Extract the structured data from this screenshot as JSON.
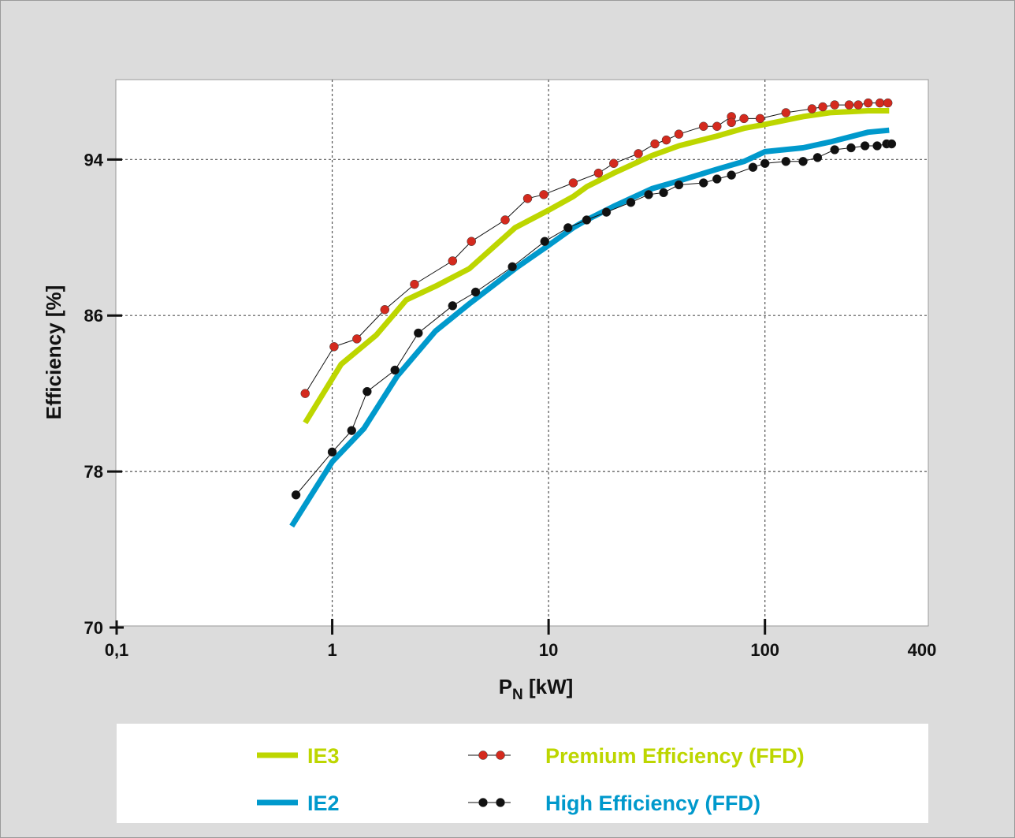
{
  "chart_data": {
    "type": "line",
    "x_scale": "log",
    "xlim": [
      0.1,
      400
    ],
    "ylim": [
      70,
      98.5
    ],
    "x_ticks": [
      {
        "value": 0.1,
        "label": "0,1"
      },
      {
        "value": 1,
        "label": "1"
      },
      {
        "value": 10,
        "label": "10"
      },
      {
        "value": 100,
        "label": "100"
      },
      {
        "value": 400,
        "label": "400"
      }
    ],
    "y_ticks": [
      {
        "value": 70,
        "label": "70"
      },
      {
        "value": 78,
        "label": "78"
      },
      {
        "value": 86,
        "label": "86"
      },
      {
        "value": 94,
        "label": "94"
      }
    ],
    "ylabel": "Efficiency [%]",
    "xlabel_main": "P",
    "xlabel_sub": "N",
    "xlabel_rest": " [kW]",
    "grid": true,
    "legend_position": "bottom",
    "series": [
      {
        "name": "IE3",
        "style": "line",
        "color": "#bdd600",
        "points": [
          [
            0.75,
            80.5
          ],
          [
            1.1,
            83.5
          ],
          [
            1.6,
            85
          ],
          [
            2.2,
            86.8
          ],
          [
            3.0,
            87.5
          ],
          [
            4.3,
            88.4
          ],
          [
            7.0,
            90.5
          ],
          [
            10,
            91.4
          ],
          [
            13,
            92.1
          ],
          [
            15,
            92.6
          ],
          [
            20,
            93.3
          ],
          [
            30,
            94.2
          ],
          [
            40,
            94.7
          ],
          [
            60,
            95.2
          ],
          [
            80,
            95.6
          ],
          [
            100,
            95.8
          ],
          [
            150,
            96.2
          ],
          [
            200,
            96.4
          ],
          [
            300,
            96.5
          ],
          [
            375,
            96.5
          ]
        ]
      },
      {
        "name": "IE2",
        "style": "line",
        "color": "#0099cc",
        "points": [
          [
            0.65,
            75.2
          ],
          [
            1.0,
            78.5
          ],
          [
            1.4,
            80.2
          ],
          [
            2.0,
            82.9
          ],
          [
            3.0,
            85.2
          ],
          [
            4.3,
            86.6
          ],
          [
            7.0,
            88.4
          ],
          [
            10,
            89.6
          ],
          [
            13,
            90.5
          ],
          [
            15,
            90.9
          ],
          [
            20,
            91.6
          ],
          [
            30,
            92.5
          ],
          [
            40,
            92.9
          ],
          [
            60,
            93.5
          ],
          [
            80,
            93.9
          ],
          [
            100,
            94.4
          ],
          [
            150,
            94.6
          ],
          [
            200,
            94.9
          ],
          [
            300,
            95.4
          ],
          [
            375,
            95.5
          ]
        ]
      },
      {
        "name": "Premium Efficiency (FFD)",
        "style": "line-marker",
        "color": "#d42a1e",
        "points": [
          [
            0.75,
            82
          ],
          [
            1.02,
            84.4
          ],
          [
            1.3,
            84.8
          ],
          [
            1.75,
            86.3
          ],
          [
            2.4,
            87.6
          ],
          [
            3.6,
            88.8
          ],
          [
            4.4,
            89.8
          ],
          [
            6.3,
            90.9
          ],
          [
            8.0,
            92.0
          ],
          [
            9.5,
            92.2
          ],
          [
            13,
            92.8
          ],
          [
            17,
            93.3
          ],
          [
            20,
            93.8
          ],
          [
            26,
            94.3
          ],
          [
            31,
            94.8
          ],
          [
            35,
            95.0
          ],
          [
            40,
            95.3
          ],
          [
            52,
            95.7
          ],
          [
            60,
            95.7
          ],
          [
            70,
            96.2
          ],
          [
            70,
            95.9
          ],
          [
            80,
            96.1
          ],
          [
            95,
            96.1
          ],
          [
            125,
            96.4
          ],
          [
            165,
            96.6
          ],
          [
            185,
            96.7
          ],
          [
            210,
            96.8
          ],
          [
            245,
            96.8
          ],
          [
            270,
            96.8
          ],
          [
            300,
            96.9
          ],
          [
            340,
            96.9
          ],
          [
            370,
            96.9
          ]
        ]
      },
      {
        "name": "High Efficiency (FFD)",
        "style": "line-marker",
        "color": "#111111",
        "points": [
          [
            0.68,
            76.8
          ],
          [
            1.0,
            79.0
          ],
          [
            1.23,
            80.1
          ],
          [
            1.45,
            82.1
          ],
          [
            1.95,
            83.2
          ],
          [
            2.5,
            85.1
          ],
          [
            3.6,
            86.5
          ],
          [
            4.6,
            87.2
          ],
          [
            6.8,
            88.5
          ],
          [
            9.6,
            89.8
          ],
          [
            12.3,
            90.5
          ],
          [
            15,
            90.9
          ],
          [
            18.5,
            91.3
          ],
          [
            24,
            91.8
          ],
          [
            29,
            92.2
          ],
          [
            34,
            92.3
          ],
          [
            40,
            92.7
          ],
          [
            52,
            92.8
          ],
          [
            60,
            93.0
          ],
          [
            70,
            93.2
          ],
          [
            88,
            93.6
          ],
          [
            100,
            93.8
          ],
          [
            125,
            93.9
          ],
          [
            150,
            93.9
          ],
          [
            175,
            94.1
          ],
          [
            210,
            94.5
          ],
          [
            250,
            94.6
          ],
          [
            290,
            94.7
          ],
          [
            330,
            94.7
          ],
          [
            365,
            94.8
          ],
          [
            385,
            94.8
          ]
        ]
      }
    ]
  },
  "legend": {
    "items": [
      {
        "label": "IE3",
        "color": "#bdd600",
        "kind": "line"
      },
      {
        "label": "Premium Efficiency (FFD)",
        "color": "#bdd600",
        "kind": "marker",
        "marker_color": "#d42a1e"
      },
      {
        "label": "IE2",
        "color": "#0099cc",
        "kind": "line"
      },
      {
        "label": "High Efficiency (FFD)",
        "color": "#0099cc",
        "kind": "marker",
        "marker_color": "#111111"
      }
    ]
  }
}
